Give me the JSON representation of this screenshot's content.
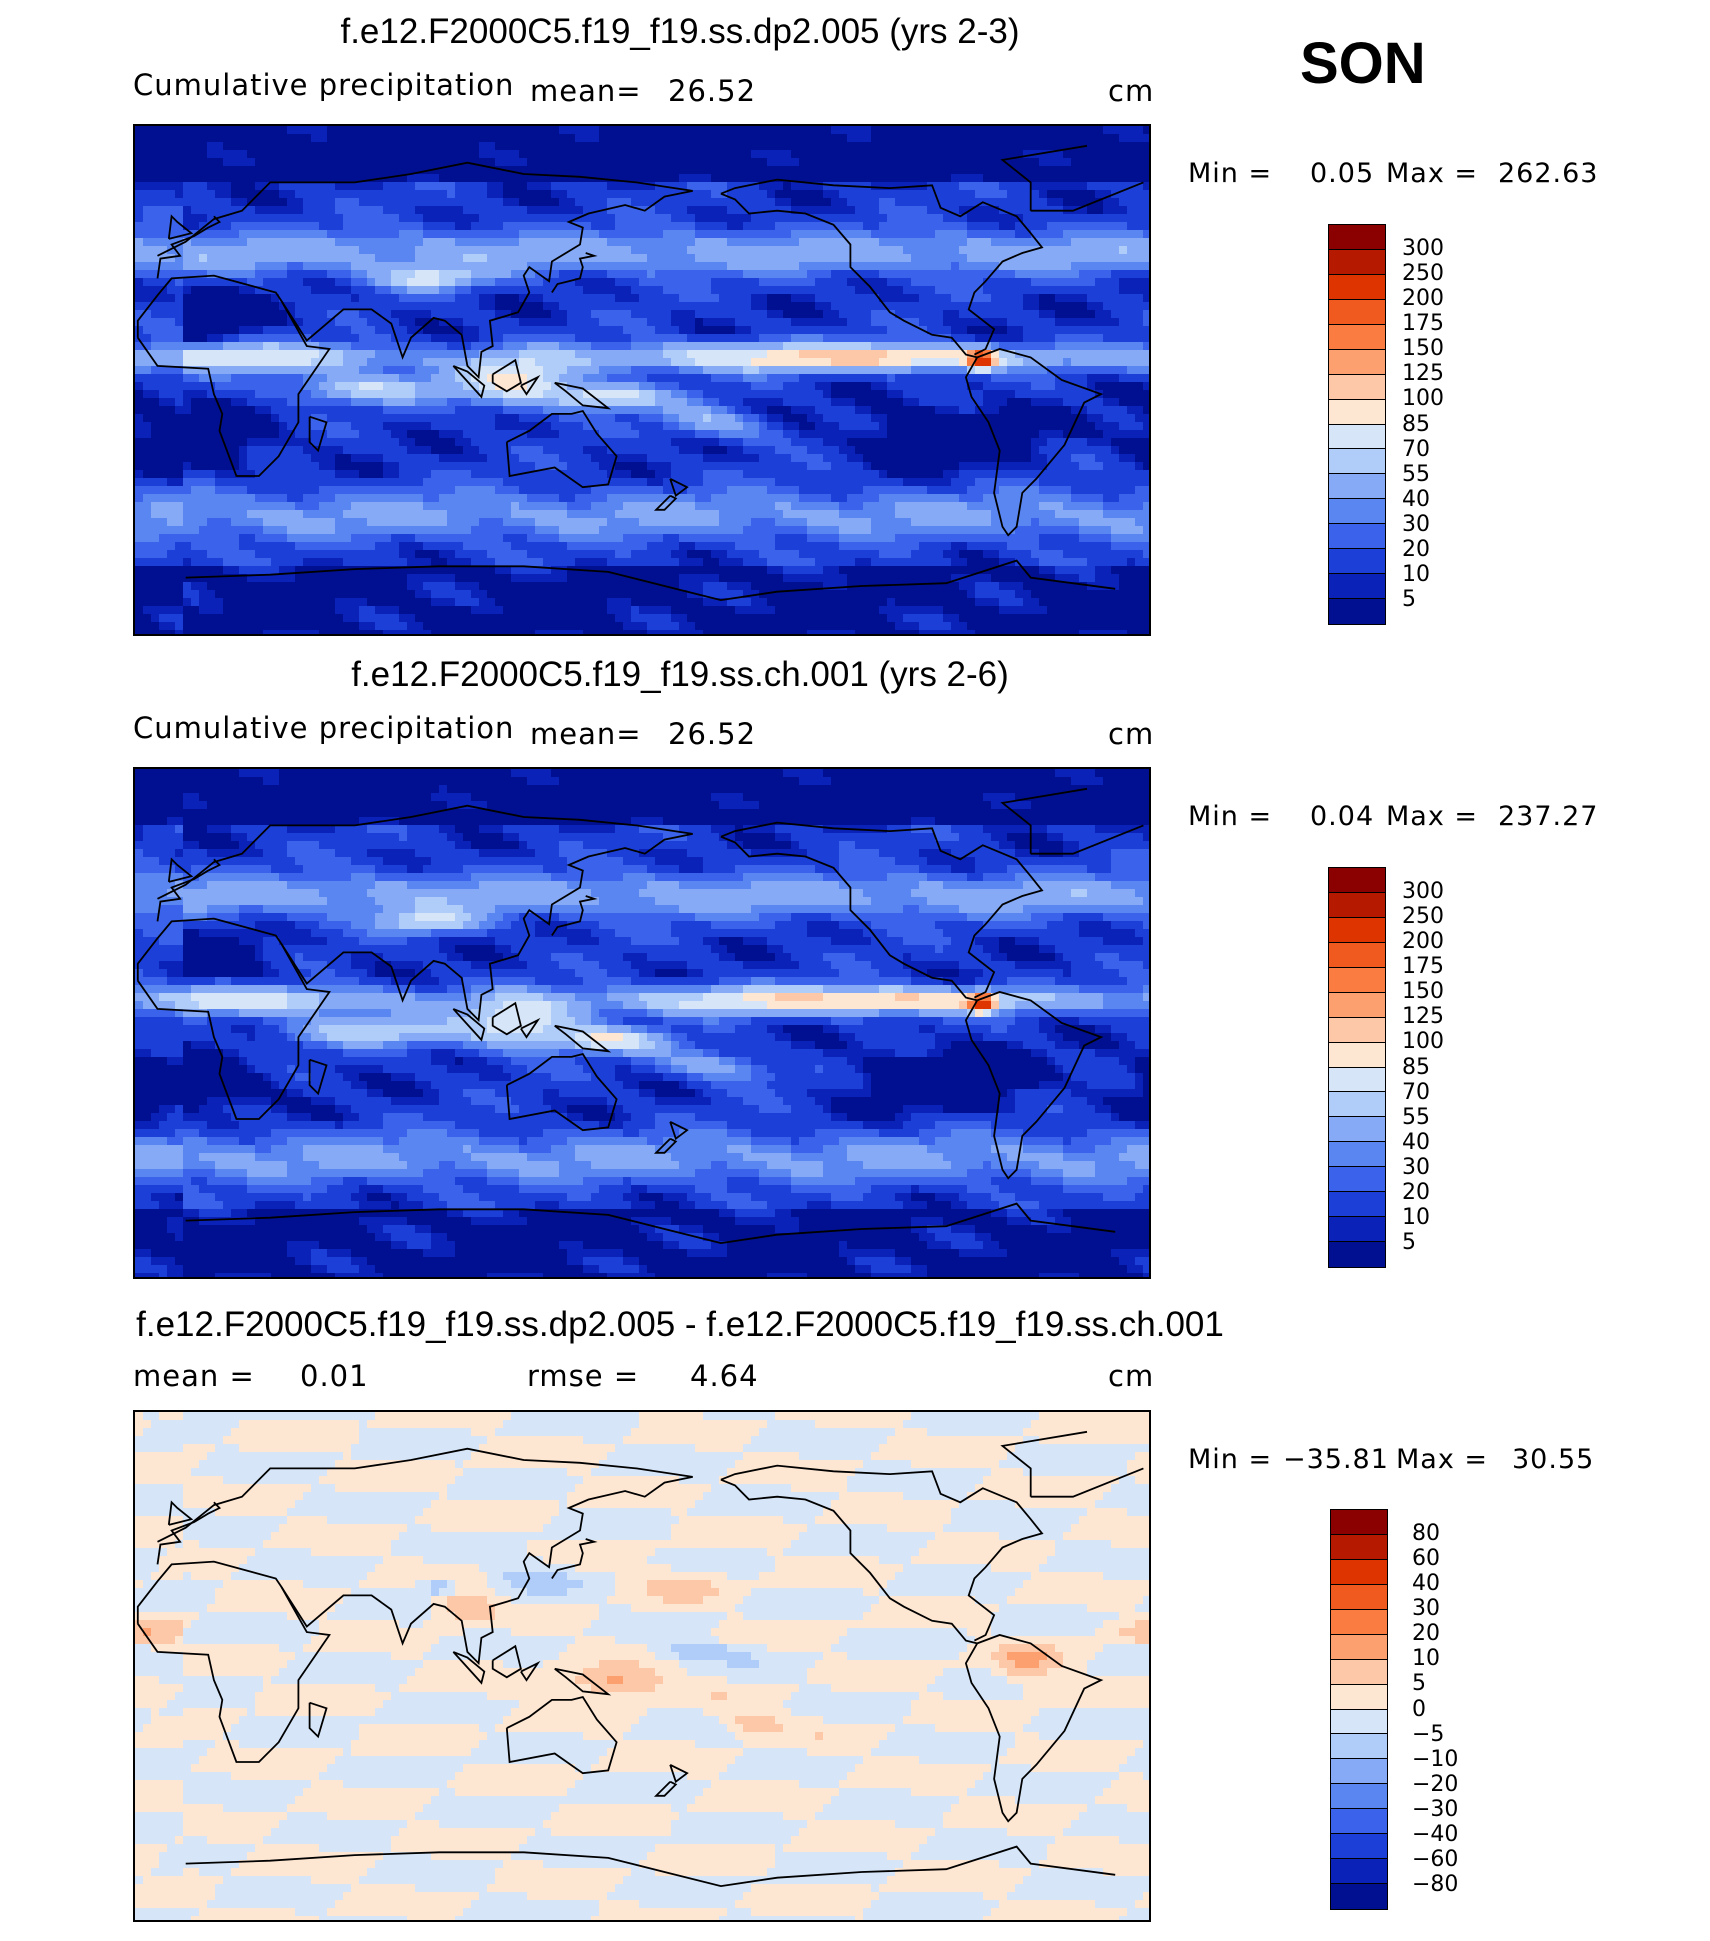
{
  "season": "SON",
  "panels": [
    {
      "title": "f.e12.F2000C5.f19_f19.ss.dp2.005 (yrs 2-3)",
      "variable": "Cumulative precipitation",
      "mean_label": "mean=",
      "mean_value": "26.52",
      "units": "cm",
      "min_label": "Min =",
      "min_value": "0.05",
      "max_label": "Max =",
      "max_value": "262.63",
      "colorbar": {
        "labels": [
          "300",
          "250",
          "200",
          "175",
          "150",
          "125",
          "100",
          "85",
          "70",
          "55",
          "40",
          "30",
          "20",
          "10",
          "5"
        ],
        "colors": [
          "#8b0000",
          "#b51a00",
          "#de3500",
          "#f05a1e",
          "#fb7c40",
          "#fca070",
          "#fdc8a8",
          "#fde6d2",
          "#d6e6f8",
          "#b0ccf8",
          "#86aaf6",
          "#5a86f2",
          "#3a62ea",
          "#1c3fd8",
          "#0a22b8",
          "#001090"
        ]
      },
      "field": "precip_model_a"
    },
    {
      "title": "f.e12.F2000C5.f19_f19.ss.ch.001 (yrs 2-6)",
      "variable": "Cumulative precipitation",
      "mean_label": "mean=",
      "mean_value": "26.52",
      "units": "cm",
      "min_label": "Min =",
      "min_value": "0.04",
      "max_label": "Max =",
      "max_value": "237.27",
      "colorbar": {
        "labels": [
          "300",
          "250",
          "200",
          "175",
          "150",
          "125",
          "100",
          "85",
          "70",
          "55",
          "40",
          "30",
          "20",
          "10",
          "5"
        ],
        "colors": [
          "#8b0000",
          "#b51a00",
          "#de3500",
          "#f05a1e",
          "#fb7c40",
          "#fca070",
          "#fdc8a8",
          "#fde6d2",
          "#d6e6f8",
          "#b0ccf8",
          "#86aaf6",
          "#5a86f2",
          "#3a62ea",
          "#1c3fd8",
          "#0a22b8",
          "#001090"
        ]
      },
      "field": "precip_model_b"
    },
    {
      "title": "f.e12.F2000C5.f19_f19.ss.dp2.005 - f.e12.F2000C5.f19_f19.ss.ch.001",
      "variable": "",
      "mean_label": "mean =",
      "mean_value": "0.01",
      "rmse_label": "rmse =",
      "rmse_value": "4.64",
      "units": "cm",
      "min_label": "Min =",
      "min_value": "−35.81",
      "max_label": "Max =",
      "max_value": "30.55",
      "colorbar": {
        "labels": [
          "80",
          "60",
          "40",
          "30",
          "20",
          "10",
          "5",
          "0",
          "−5",
          "−10",
          "−20",
          "−30",
          "−40",
          "−60",
          "−80"
        ],
        "colors": [
          "#8b0000",
          "#b51a00",
          "#de3500",
          "#f05a1e",
          "#fb7c40",
          "#fca070",
          "#fdc8a8",
          "#fde6d2",
          "#d6e6f8",
          "#b0ccf8",
          "#86aaf6",
          "#5a86f2",
          "#3a62ea",
          "#1c3fd8",
          "#0a22b8",
          "#001090"
        ]
      },
      "field": "precip_difference"
    }
  ],
  "chart_data": [
    {
      "type": "heatmap",
      "title": "f.e12.F2000C5.f19_f19.ss.dp2.005 (yrs 2-3)",
      "subtitle": "Cumulative precipitation",
      "units": "cm",
      "mean": 26.52,
      "min": 0.05,
      "max": 262.63,
      "contour_levels": [
        5,
        10,
        20,
        30,
        40,
        55,
        70,
        85,
        100,
        125,
        150,
        175,
        200,
        250,
        300
      ],
      "projection": "cylindrical equidistant, centered on 180"
    },
    {
      "type": "heatmap",
      "title": "f.e12.F2000C5.f19_f19.ss.ch.001 (yrs 2-6)",
      "subtitle": "Cumulative precipitation",
      "units": "cm",
      "mean": 26.52,
      "min": 0.04,
      "max": 237.27,
      "contour_levels": [
        5,
        10,
        20,
        30,
        40,
        55,
        70,
        85,
        100,
        125,
        150,
        175,
        200,
        250,
        300
      ],
      "projection": "cylindrical equidistant, centered on 180"
    },
    {
      "type": "heatmap",
      "title": "f.e12.F2000C5.f19_f19.ss.dp2.005 - f.e12.F2000C5.f19_f19.ss.ch.001",
      "units": "cm",
      "mean": 0.01,
      "rmse": 4.64,
      "min": -35.81,
      "max": 30.55,
      "contour_levels": [
        -80,
        -60,
        -40,
        -30,
        -20,
        -10,
        -5,
        0,
        5,
        10,
        20,
        30,
        40,
        60,
        80
      ],
      "projection": "cylindrical equidistant, centered on 180"
    }
  ]
}
